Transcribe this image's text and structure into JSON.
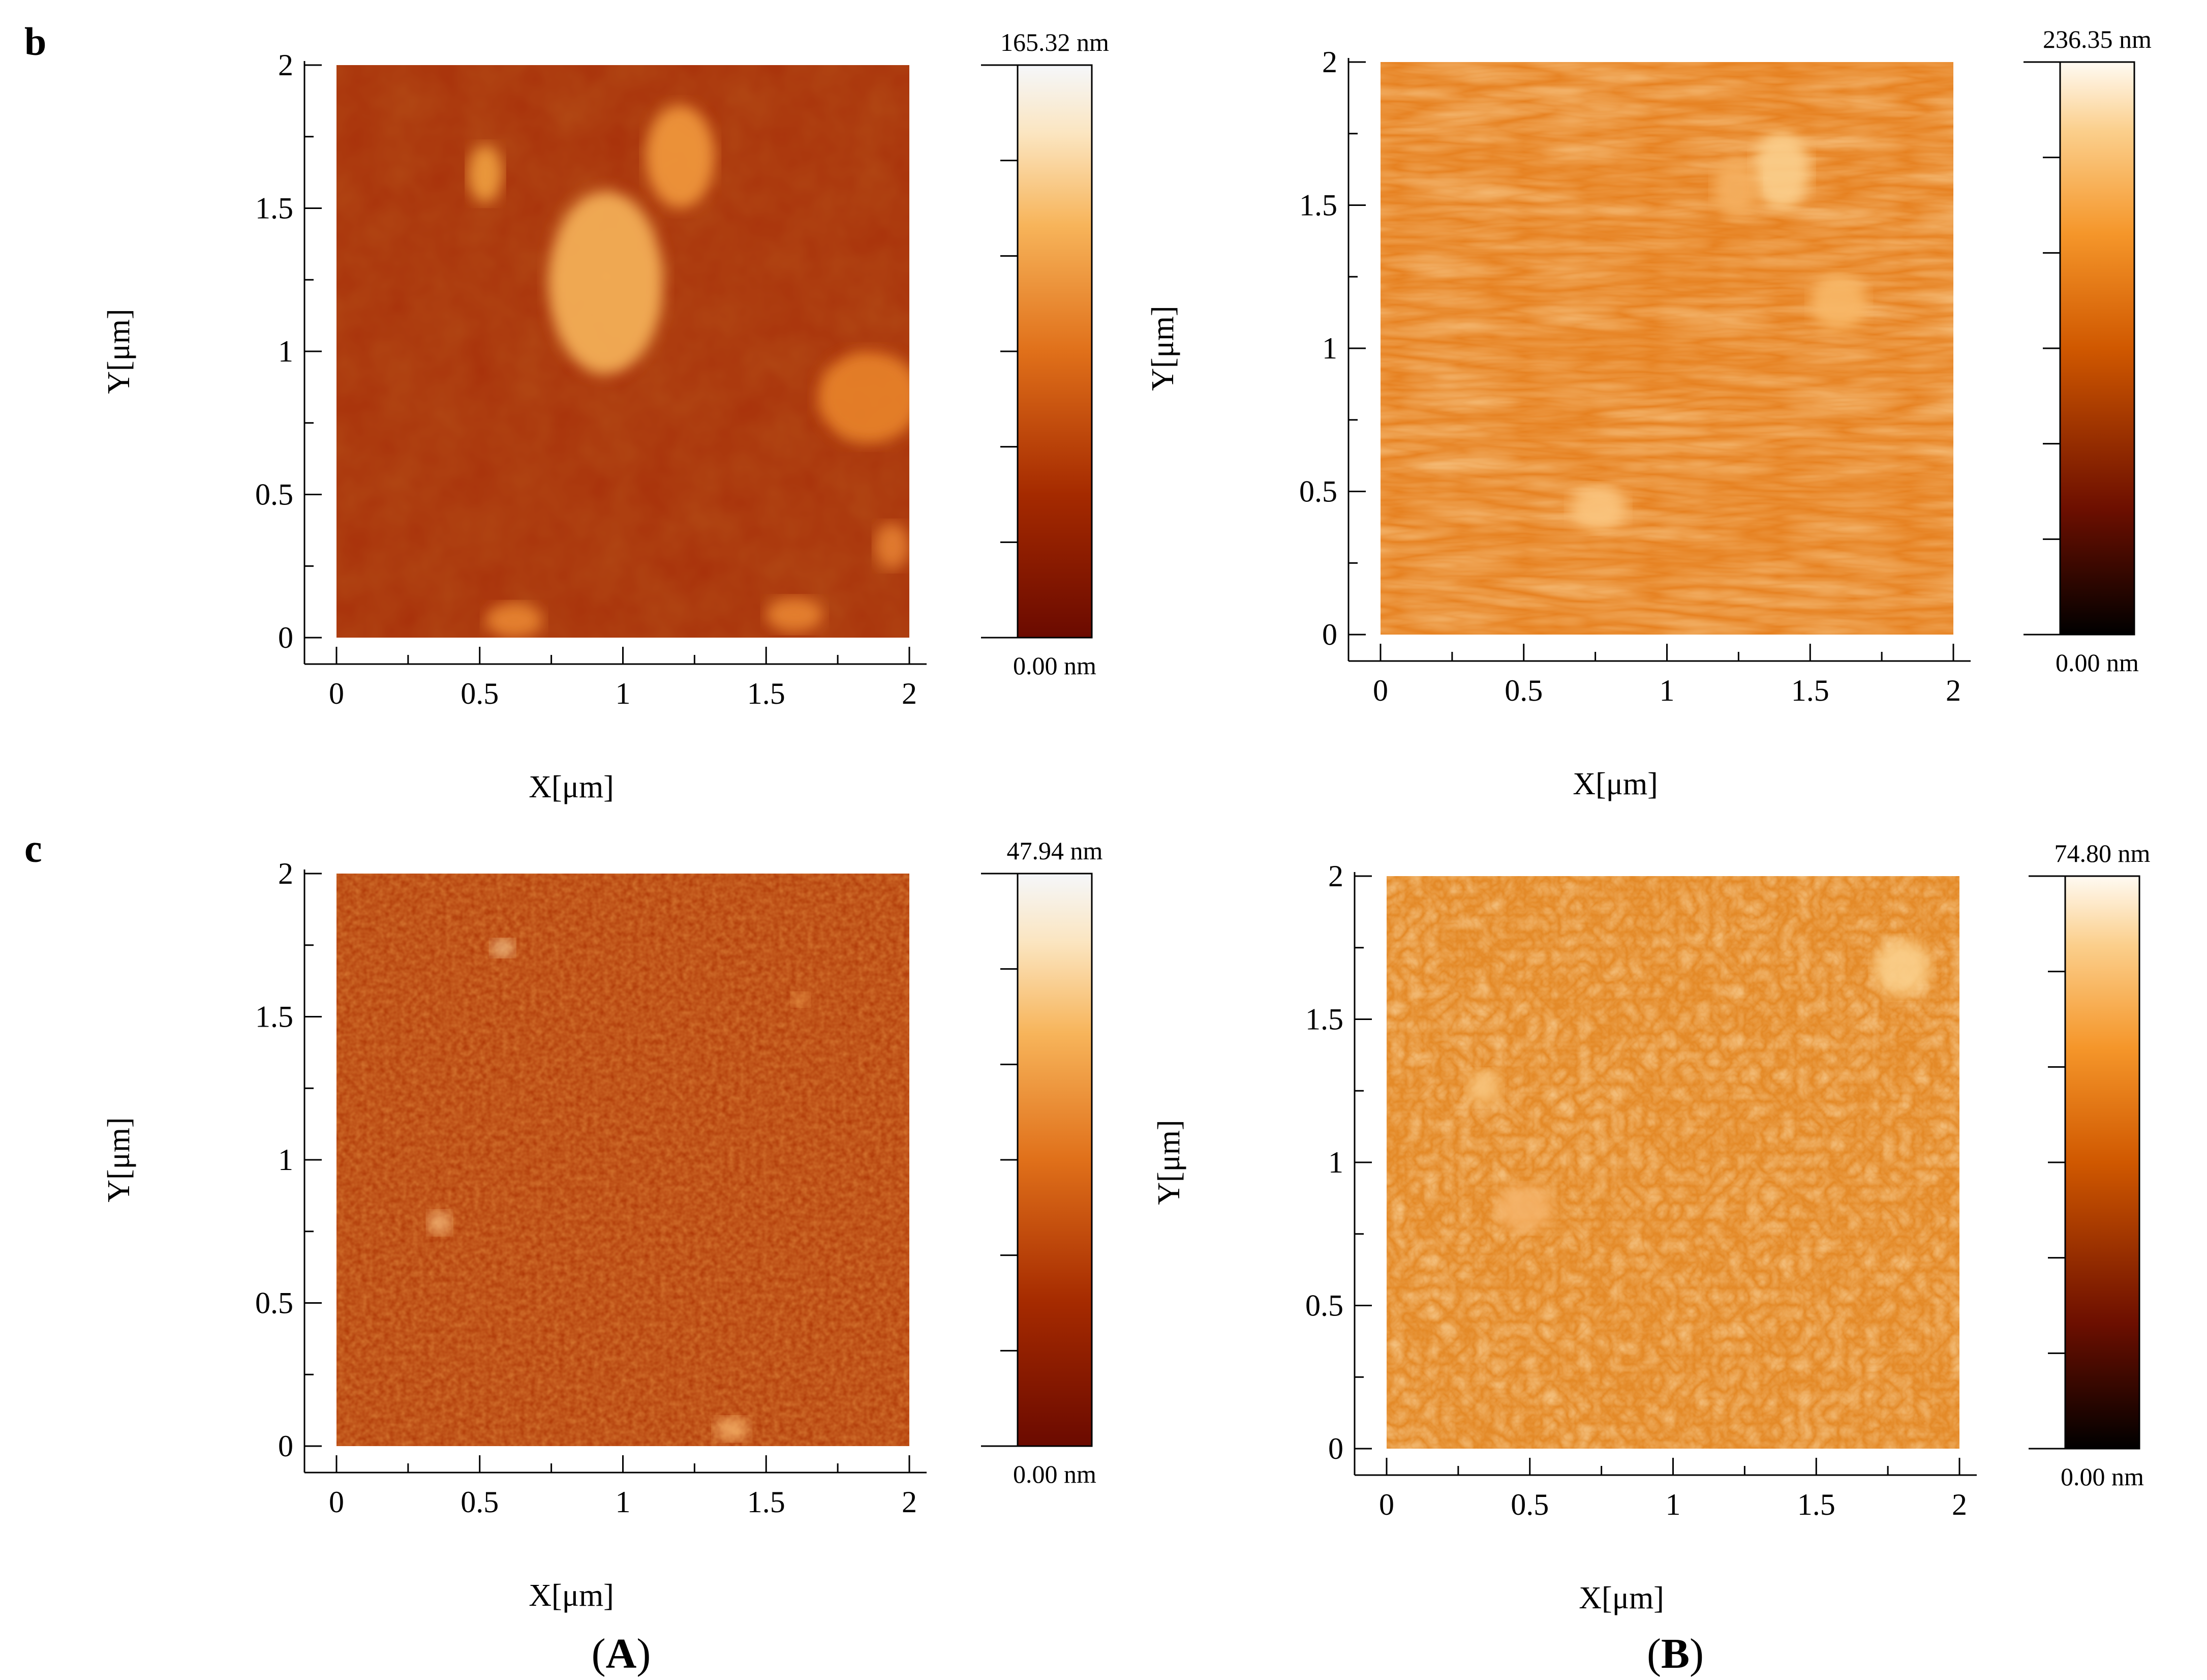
{
  "figure": {
    "row_labels": [
      "b",
      "c"
    ],
    "column_labels": [
      {
        "open": "(",
        "letter": "A",
        "close": ")"
      },
      {
        "open": "(",
        "letter": "B",
        "close": ")"
      }
    ],
    "x_axis_title": "X[μm]",
    "y_axis_title": "Y[μm]",
    "tick_values": [
      "0",
      "0.5",
      "1",
      "1.5",
      "2"
    ],
    "panels": [
      {
        "id": "b-A",
        "colormap": "dark-red to white",
        "cbar_max": "165.32 nm",
        "cbar_min": "0.00 nm",
        "texture": "smooth-with-grains"
      },
      {
        "id": "b-B",
        "colormap": "black to orange to white",
        "cbar_max": "236.35 nm",
        "cbar_min": "0.00 nm",
        "texture": "ridged-scan"
      },
      {
        "id": "c-A",
        "colormap": "dark-red to white",
        "cbar_max": "47.94 nm",
        "cbar_min": "0.00 nm",
        "texture": "fine-granular"
      },
      {
        "id": "c-B",
        "colormap": "black to orange to white",
        "cbar_max": "74.80 nm",
        "cbar_min": "0.00 nm",
        "texture": "coarse-granular"
      }
    ]
  },
  "colors": {
    "redmap": [
      "#6b0a00",
      "#a52a00",
      "#e0701a",
      "#f7b45a",
      "#fbe5c0",
      "#f5f7fa"
    ],
    "orangemap": [
      "#000000",
      "#6d0f00",
      "#d05800",
      "#f5962a",
      "#fbcf8c",
      "#fffaf2"
    ]
  }
}
